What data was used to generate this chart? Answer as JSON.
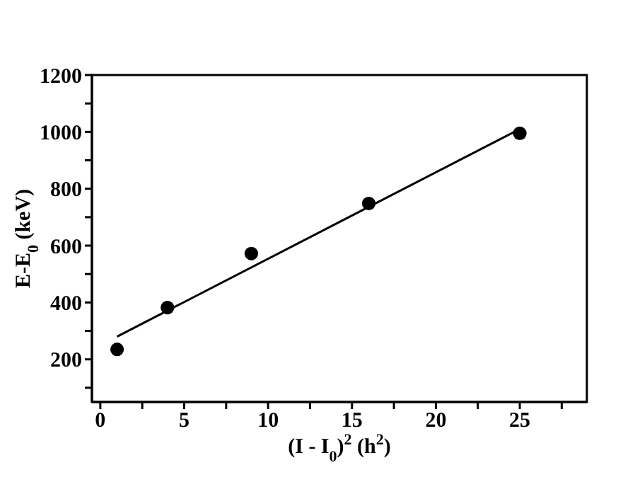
{
  "chart_data": {
    "type": "scatter",
    "xlabel": "(I - I$_{0}$)$^{2}$  (h$^{2}$)",
    "ylabel": "E-E$_{0}$ (keV)",
    "xlim": [
      -0.5,
      29
    ],
    "ylim": [
      50,
      1200
    ],
    "xticks": [
      0,
      {
        "value": 2.5,
        "label": null
      },
      5,
      {
        "value": 7.5,
        "label": null
      },
      10,
      {
        "value": 12.5,
        "label": null
      },
      15,
      {
        "value": 17.5,
        "label": null
      },
      20,
      {
        "value": 22.5,
        "label": null
      },
      25,
      {
        "value": 27.5,
        "label": null
      }
    ],
    "yticks": [
      {
        "value": 100,
        "label": null
      },
      200,
      {
        "value": 300,
        "label": null
      },
      400,
      {
        "value": 500,
        "label": null
      },
      600,
      {
        "value": 700,
        "label": null
      },
      800,
      {
        "value": 900,
        "label": null
      },
      1000,
      {
        "value": 1100,
        "label": null
      },
      1200
    ],
    "marker": "circle",
    "grid": false,
    "series": [
      {
        "color": "#000000",
        "x": [
          1,
          4,
          9,
          16,
          25
        ],
        "values": [
          235,
          382,
          572,
          748,
          995
        ]
      },
      {
        "type": "line",
        "color": "#000000",
        "marker": "none",
        "x": [
          1,
          25
        ],
        "values": [
          280,
          1010
        ]
      }
    ]
  }
}
